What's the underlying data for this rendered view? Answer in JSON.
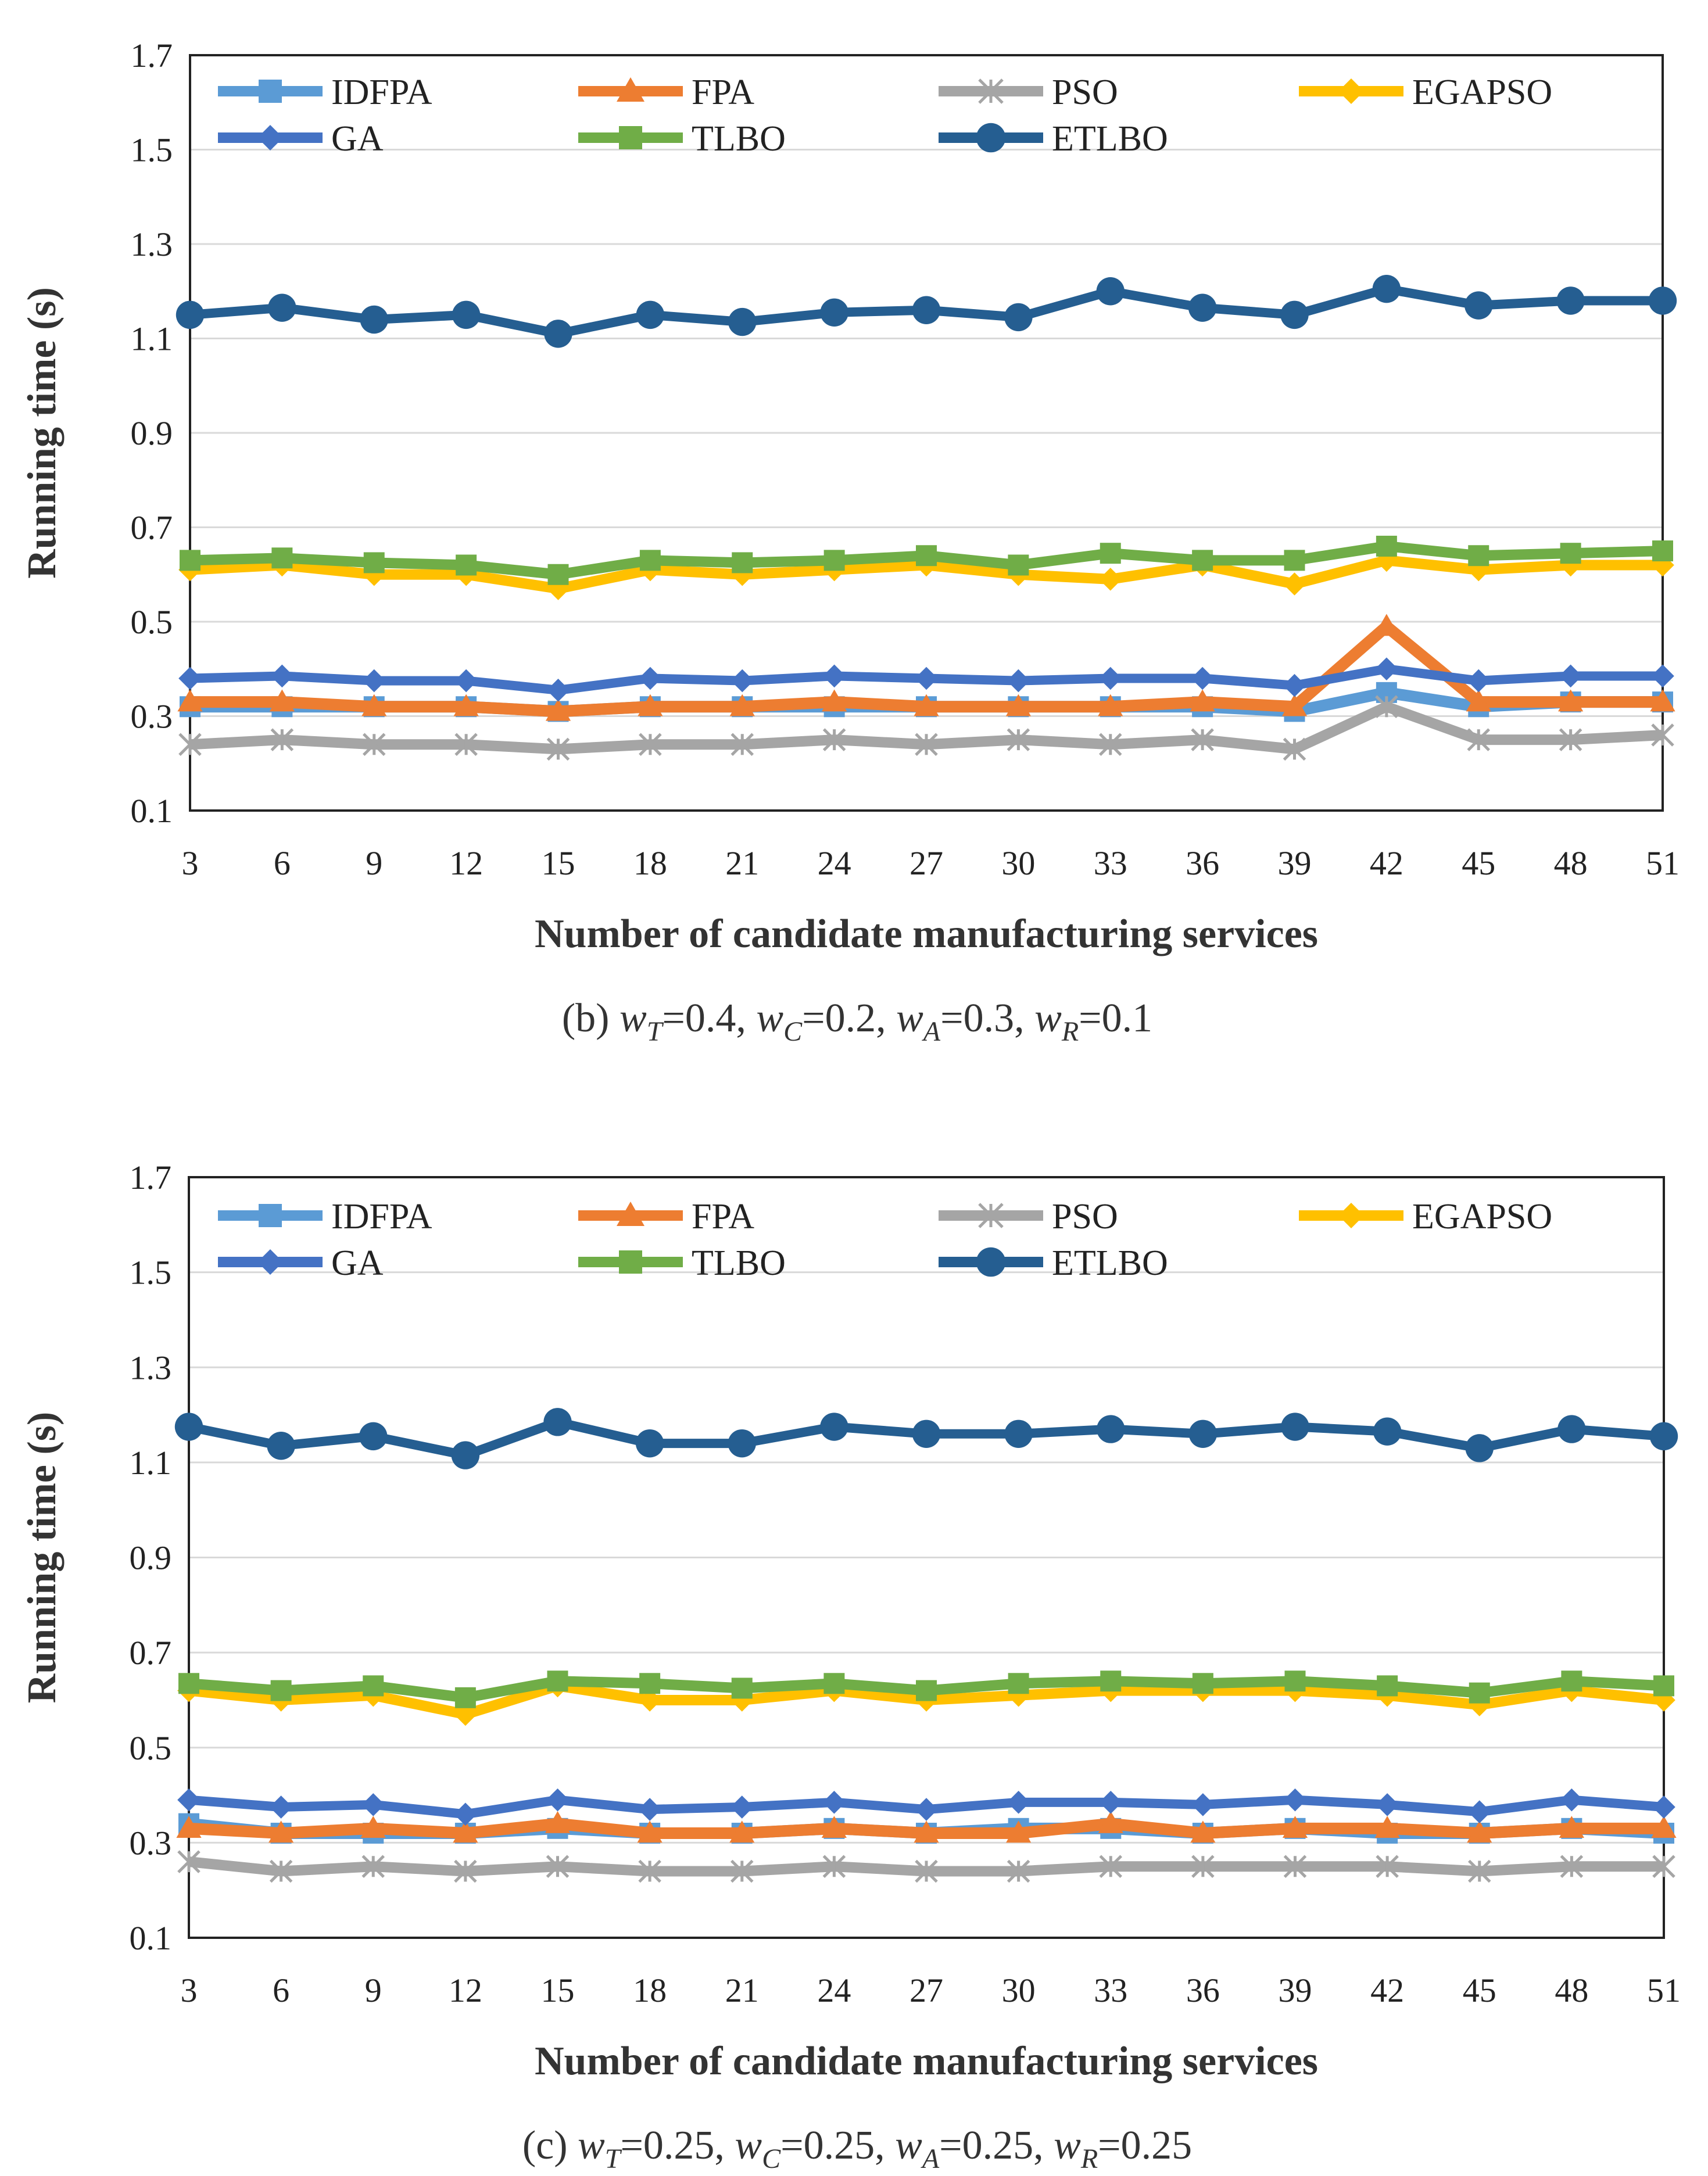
{
  "chart_data": [
    {
      "type": "line",
      "panel": "b",
      "caption": {
        "prefix": "(b) ",
        "wT": "=0.4",
        "wC": "=0.2",
        "wA": "=0.3",
        "wR": "=0.1"
      },
      "xlabel": "Number of candidate manufacturing services",
      "ylabel": "Running time (s)",
      "ylim": [
        0.1,
        1.7
      ],
      "yticks": [
        "0.1",
        "0.3",
        "0.5",
        "0.7",
        "0.9",
        "1.1",
        "1.3",
        "1.5",
        "1.7"
      ],
      "grid": true,
      "categories": [
        "3",
        "6",
        "9",
        "12",
        "15",
        "18",
        "21",
        "24",
        "27",
        "30",
        "33",
        "36",
        "39",
        "42",
        "45",
        "48",
        "51"
      ],
      "series": [
        {
          "name": "IDFPA",
          "color": "#5B9BD5",
          "marker": "square",
          "values": [
            0.32,
            0.32,
            0.32,
            0.32,
            0.31,
            0.32,
            0.32,
            0.32,
            0.32,
            0.32,
            0.32,
            0.32,
            0.31,
            0.35,
            0.32,
            0.33,
            0.33
          ]
        },
        {
          "name": "FPA",
          "color": "#ED7D31",
          "marker": "triangle",
          "values": [
            0.33,
            0.33,
            0.32,
            0.32,
            0.31,
            0.32,
            0.32,
            0.33,
            0.32,
            0.32,
            0.32,
            0.33,
            0.32,
            0.49,
            0.33,
            0.33,
            0.33
          ]
        },
        {
          "name": "PSO",
          "color": "#A5A5A5",
          "marker": "star",
          "values": [
            0.24,
            0.25,
            0.24,
            0.24,
            0.23,
            0.24,
            0.24,
            0.25,
            0.24,
            0.25,
            0.24,
            0.25,
            0.23,
            0.32,
            0.25,
            0.25,
            0.26
          ]
        },
        {
          "name": "EGAPSO",
          "color": "#FFC000",
          "marker": "diamond",
          "values": [
            0.61,
            0.62,
            0.6,
            0.6,
            0.57,
            0.61,
            0.6,
            0.61,
            0.62,
            0.6,
            0.59,
            0.62,
            0.58,
            0.63,
            0.61,
            0.62,
            0.62
          ]
        },
        {
          "name": "GA",
          "color": "#4472C4",
          "marker": "diamond",
          "values": [
            0.38,
            0.385,
            0.375,
            0.375,
            0.355,
            0.38,
            0.375,
            0.385,
            0.38,
            0.375,
            0.38,
            0.38,
            0.365,
            0.4,
            0.375,
            0.385,
            0.385
          ]
        },
        {
          "name": "TLBO",
          "color": "#70AD47",
          "marker": "square",
          "values": [
            0.63,
            0.635,
            0.625,
            0.62,
            0.6,
            0.63,
            0.625,
            0.63,
            0.64,
            0.62,
            0.645,
            0.63,
            0.63,
            0.66,
            0.64,
            0.645,
            0.65
          ]
        },
        {
          "name": "ETLBO",
          "color": "#255E91",
          "marker": "circle",
          "values": [
            1.15,
            1.165,
            1.14,
            1.15,
            1.11,
            1.15,
            1.135,
            1.155,
            1.16,
            1.145,
            1.2,
            1.165,
            1.15,
            1.205,
            1.17,
            1.18,
            1.18
          ]
        }
      ]
    },
    {
      "type": "line",
      "panel": "c",
      "caption": {
        "prefix": "(c) ",
        "wT": "=0.25",
        "wC": "=0.25",
        "wA": "=0.25",
        "wR": "=0.25"
      },
      "xlabel": "Number of candidate manufacturing services",
      "ylabel": "Running time (s)",
      "ylim": [
        0.1,
        1.7
      ],
      "yticks": [
        "0.1",
        "0.3",
        "0.5",
        "0.7",
        "0.9",
        "1.1",
        "1.3",
        "1.5",
        "1.7"
      ],
      "grid": true,
      "categories": [
        "3",
        "6",
        "9",
        "12",
        "15",
        "18",
        "21",
        "24",
        "27",
        "30",
        "33",
        "36",
        "39",
        "42",
        "45",
        "48",
        "51"
      ],
      "series": [
        {
          "name": "IDFPA",
          "color": "#5B9BD5",
          "marker": "square",
          "values": [
            0.34,
            0.32,
            0.32,
            0.32,
            0.33,
            0.32,
            0.32,
            0.33,
            0.32,
            0.33,
            0.33,
            0.32,
            0.33,
            0.32,
            0.32,
            0.33,
            0.32
          ]
        },
        {
          "name": "FPA",
          "color": "#ED7D31",
          "marker": "triangle",
          "values": [
            0.33,
            0.32,
            0.33,
            0.32,
            0.34,
            0.32,
            0.32,
            0.33,
            0.32,
            0.32,
            0.34,
            0.32,
            0.33,
            0.33,
            0.32,
            0.33,
            0.33
          ]
        },
        {
          "name": "PSO",
          "color": "#A5A5A5",
          "marker": "star",
          "values": [
            0.26,
            0.24,
            0.25,
            0.24,
            0.25,
            0.24,
            0.24,
            0.25,
            0.24,
            0.24,
            0.25,
            0.25,
            0.25,
            0.25,
            0.24,
            0.25,
            0.25
          ]
        },
        {
          "name": "EGAPSO",
          "color": "#FFC000",
          "marker": "diamond",
          "values": [
            0.62,
            0.6,
            0.61,
            0.57,
            0.63,
            0.6,
            0.6,
            0.62,
            0.6,
            0.61,
            0.62,
            0.62,
            0.62,
            0.61,
            0.59,
            0.62,
            0.6
          ]
        },
        {
          "name": "GA",
          "color": "#4472C4",
          "marker": "diamond",
          "values": [
            0.39,
            0.375,
            0.38,
            0.36,
            0.39,
            0.37,
            0.375,
            0.385,
            0.37,
            0.385,
            0.385,
            0.38,
            0.39,
            0.38,
            0.365,
            0.39,
            0.375
          ]
        },
        {
          "name": "TLBO",
          "color": "#70AD47",
          "marker": "square",
          "values": [
            0.635,
            0.62,
            0.63,
            0.605,
            0.64,
            0.635,
            0.625,
            0.635,
            0.62,
            0.635,
            0.64,
            0.635,
            0.64,
            0.63,
            0.615,
            0.64,
            0.63
          ]
        },
        {
          "name": "ETLBO",
          "color": "#255E91",
          "marker": "circle",
          "values": [
            1.175,
            1.135,
            1.155,
            1.115,
            1.185,
            1.14,
            1.14,
            1.175,
            1.16,
            1.16,
            1.17,
            1.16,
            1.175,
            1.165,
            1.13,
            1.17,
            1.155
          ]
        }
      ]
    }
  ]
}
